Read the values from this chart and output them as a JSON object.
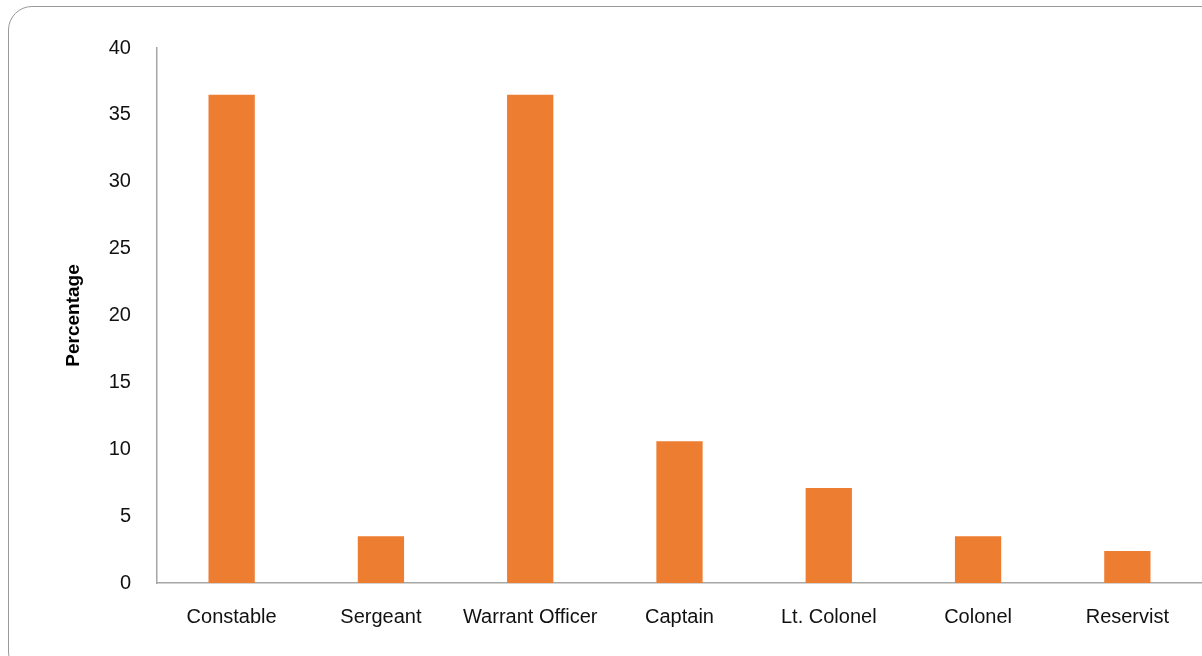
{
  "chart_data": {
    "type": "bar",
    "ylabel": "Percentage",
    "categories": [
      "Constable",
      "Sergeant",
      "Warrant Officer",
      "Captain",
      "Lt. Colonel",
      "Colonel",
      "Reservist"
    ],
    "values": [
      36.5,
      3.5,
      36.5,
      10.6,
      7.1,
      3.5,
      2.4
    ],
    "color": "#ed7d31",
    "ylim": [
      0,
      40
    ],
    "yticks": [
      0,
      5,
      10,
      15,
      20,
      25,
      30,
      35,
      40
    ]
  }
}
